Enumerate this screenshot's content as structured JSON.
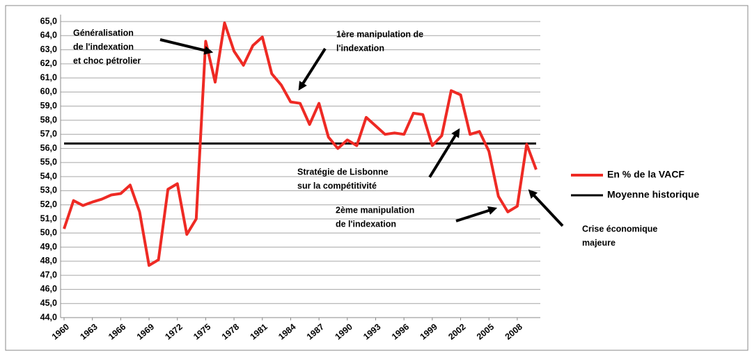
{
  "chart_data": {
    "type": "line",
    "categories": [
      "1960",
      null,
      null,
      "1963",
      null,
      null,
      "1966",
      null,
      null,
      "1969",
      null,
      null,
      "1972",
      null,
      null,
      "1975",
      null,
      null,
      "1978",
      null,
      null,
      "1981",
      null,
      null,
      "1984",
      null,
      null,
      "1987",
      null,
      null,
      "1990",
      null,
      null,
      "1993",
      null,
      null,
      "1996",
      null,
      null,
      "1999",
      null,
      null,
      "2002",
      null,
      null,
      "2005",
      null,
      null,
      "2008",
      null,
      null
    ],
    "series": [
      {
        "name": "En % de la VACF",
        "color": "#ee2a24",
        "values": [
          50.3,
          52.3,
          51.95,
          52.2,
          52.4,
          52.7,
          52.8,
          53.4,
          51.5,
          47.7,
          48.1,
          53.1,
          53.5,
          49.9,
          51.0,
          63.6,
          60.7,
          64.9,
          62.9,
          61.9,
          63.3,
          63.9,
          61.3,
          60.5,
          59.3,
          59.2,
          57.7,
          59.2,
          56.8,
          56.0,
          56.6,
          56.2,
          58.2,
          57.6,
          57.0,
          57.1,
          57.0,
          58.5,
          58.4,
          56.2,
          56.9,
          60.1,
          59.8,
          57.0,
          57.2,
          55.8,
          52.6,
          51.5,
          51.9,
          56.3,
          54.5
        ]
      },
      {
        "name": "Moyenne historique",
        "color": "#000000",
        "values": [
          56.35,
          56.35,
          56.35,
          56.35,
          56.35,
          56.35,
          56.35,
          56.35,
          56.35,
          56.35,
          56.35,
          56.35,
          56.35,
          56.35,
          56.35,
          56.35,
          56.35,
          56.35,
          56.35,
          56.35,
          56.35,
          56.35,
          56.35,
          56.35,
          56.35,
          56.35,
          56.35,
          56.35,
          56.35,
          56.35,
          56.35,
          56.35,
          56.35,
          56.35,
          56.35,
          56.35,
          56.35,
          56.35,
          56.35,
          56.35,
          56.35,
          56.35,
          56.35,
          56.35,
          56.35,
          56.35,
          56.35,
          56.35,
          56.35,
          56.35,
          56.35
        ]
      }
    ],
    "ylim": [
      44,
      65
    ],
    "yticks": [
      {
        "value": 44,
        "label": "44,0"
      },
      {
        "value": 45,
        "label": "45,0"
      },
      {
        "value": 46,
        "label": "46,0"
      },
      {
        "value": 47,
        "label": "47,0"
      },
      {
        "value": 48,
        "label": "48,0"
      },
      {
        "value": 49,
        "label": "49,0"
      },
      {
        "value": 50,
        "label": "50,0"
      },
      {
        "value": 51,
        "label": "51,0"
      },
      {
        "value": 52,
        "label": "52,0"
      },
      {
        "value": 53,
        "label": "53,0"
      },
      {
        "value": 54,
        "label": "54,0"
      },
      {
        "value": 55,
        "label": "55,0"
      },
      {
        "value": 56,
        "label": "56,0"
      },
      {
        "value": 57,
        "label": "57,0"
      },
      {
        "value": 58,
        "label": "58,0"
      },
      {
        "value": 59,
        "label": "59,0"
      },
      {
        "value": 60,
        "label": "60,0"
      },
      {
        "value": 61,
        "label": "61,0"
      },
      {
        "value": 62,
        "label": "62,0"
      },
      {
        "value": 63,
        "label": "63,0"
      },
      {
        "value": 64,
        "label": "64,0"
      },
      {
        "value": 65,
        "label": "65,0"
      }
    ],
    "grid": true,
    "legend": "right",
    "annotations": [
      [
        "Généralisation",
        "de l'indexation",
        "et choc pétrolier"
      ],
      [
        "1ère manipulation de",
        "l'indexation"
      ],
      [
        "Stratégie de Lisbonne",
        "sur la compétitivité"
      ],
      [
        "2ème manipulation",
        "de l'indexation"
      ],
      [
        "Crise économique",
        "majeure"
      ]
    ]
  }
}
